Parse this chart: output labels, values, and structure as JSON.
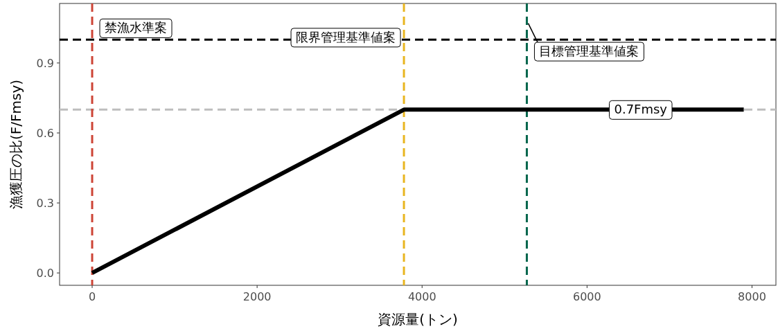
{
  "chart_data": {
    "type": "line",
    "xlabel": "資源量(トン)",
    "ylabel": "漁獲圧の比(F/Fmsy)",
    "xlim": [
      -395,
      8290
    ],
    "ylim": [
      -0.053,
      1.155
    ],
    "xticks": [
      0,
      2000,
      4000,
      6000,
      8000
    ],
    "yticks": [
      {
        "value": 0,
        "label": "0.0"
      },
      {
        "value": 0.3,
        "label": "0.3"
      },
      {
        "value": 0.6,
        "label": "0.6"
      },
      {
        "value": 0.9,
        "label": "0.9"
      }
    ],
    "grid": false,
    "line_style": "solid",
    "series": [
      {
        "color": "#000000",
        "x": [
          0,
          3780,
          7900
        ],
        "values": [
          0,
          0.7,
          0.7
        ]
      }
    ],
    "ref_lines": [
      {
        "axis": "y",
        "value": 0.7,
        "color": "#bebebe",
        "line_style": "dashed"
      },
      {
        "axis": "y",
        "value": 1.0,
        "color": "#000000",
        "line_style": "dashed"
      },
      {
        "axis": "x",
        "value": 0,
        "label": "禁漁水準案",
        "color": "#cd4436",
        "line_style": "dashed"
      },
      {
        "axis": "x",
        "value": 3780,
        "label": "限界管理基準値案",
        "color": "#e8b520",
        "line_style": "dashed"
      },
      {
        "axis": "x",
        "value": 5270,
        "label": "目標管理基準値案",
        "color": "#00664c",
        "line_style": "dashed"
      }
    ],
    "annotations": [
      {
        "text": "0.7Fmsy",
        "x": 6650,
        "y": 0.7
      }
    ]
  }
}
